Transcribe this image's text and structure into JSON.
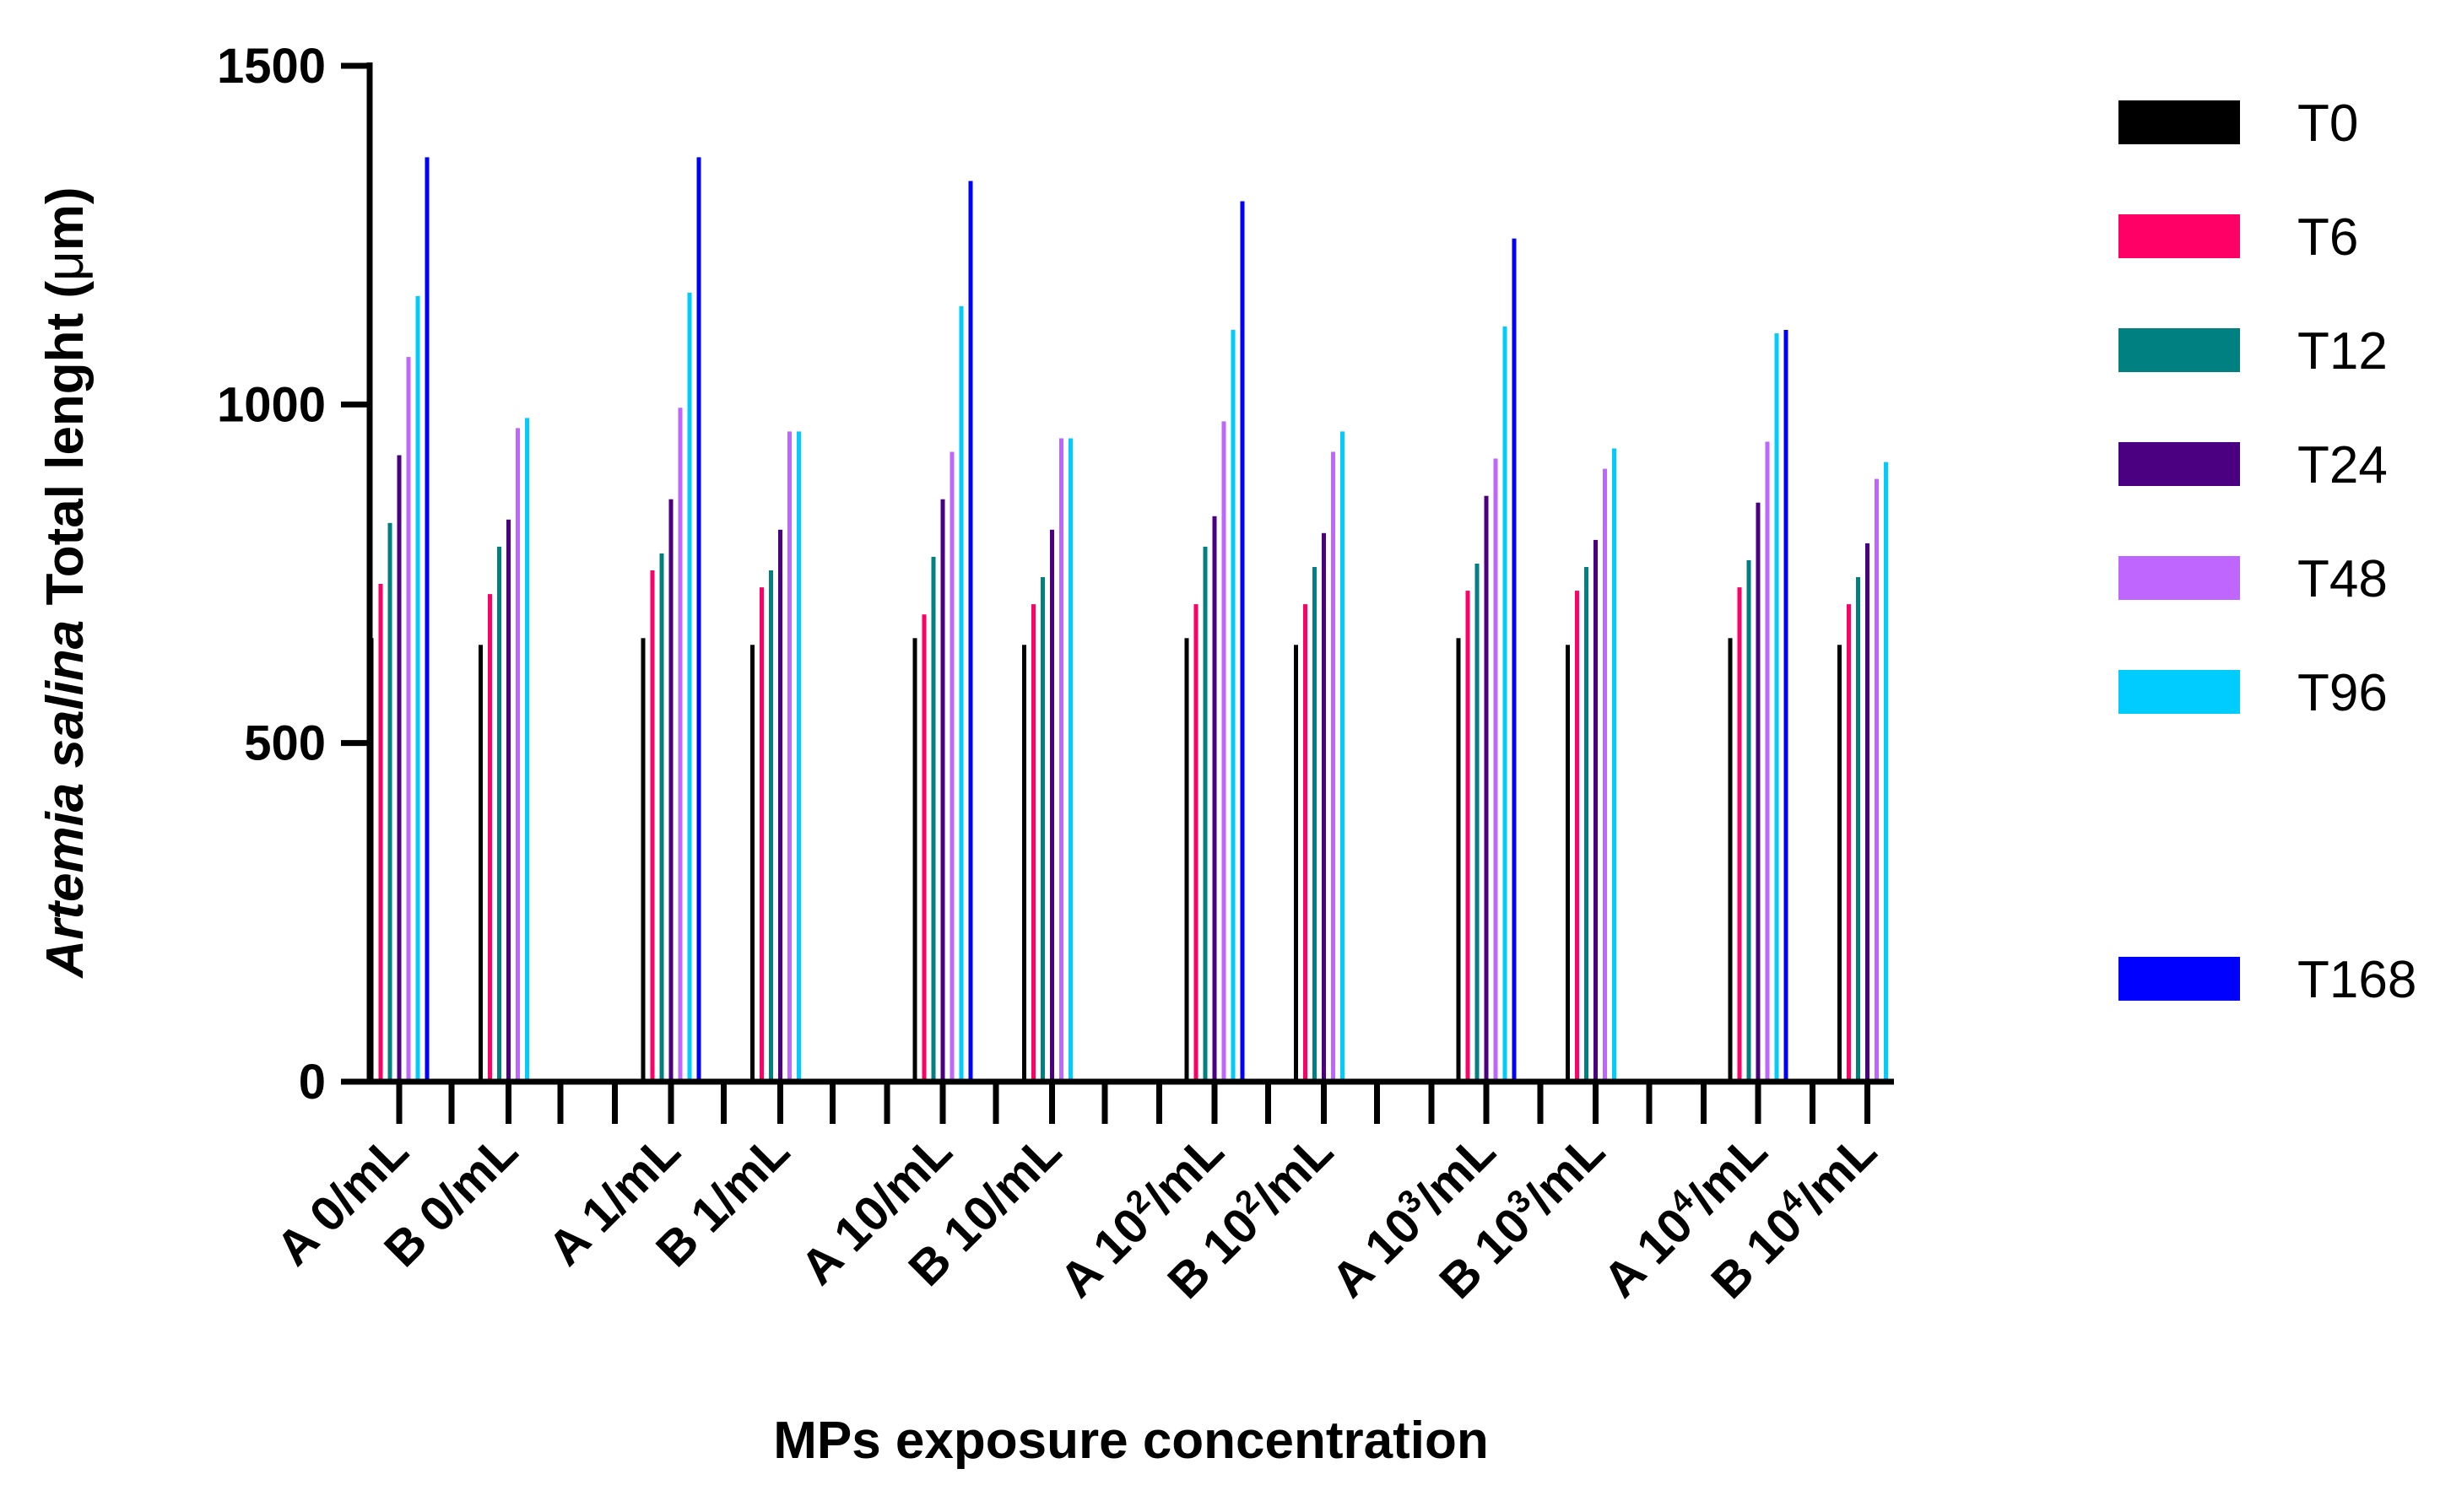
{
  "chart_data": {
    "type": "bar",
    "xlabel": "MPs exposure concentration",
    "ylabel": {
      "italic": "Artemia salina",
      "rest": " Total lenght (",
      "mu": "μ",
      "unit_end": "m)"
    },
    "ylim": [
      0,
      1500
    ],
    "yticks": [
      "0",
      "500",
      "1000",
      "1500"
    ],
    "grid": false,
    "legend_position": "right",
    "categories": [
      {
        "base": "A 0/mL",
        "sup": "",
        "tail": ""
      },
      {
        "base": "B 0/mL",
        "sup": "",
        "tail": ""
      },
      {
        "base": "A 1/mL",
        "sup": "",
        "tail": ""
      },
      {
        "base": "B 1/mL",
        "sup": "",
        "tail": ""
      },
      {
        "base": "A 10/mL",
        "sup": "",
        "tail": ""
      },
      {
        "base": "B 10/mL",
        "sup": "",
        "tail": ""
      },
      {
        "base": "A 10",
        "sup": "2",
        "tail": "/mL"
      },
      {
        "base": "B 10",
        "sup": "2",
        "tail": "/mL"
      },
      {
        "base": "A 10",
        "sup": "3",
        "tail": "/mL"
      },
      {
        "base": "B 10",
        "sup": "3",
        "tail": "/mL"
      },
      {
        "base": "A 10",
        "sup": "4",
        "tail": "/mL"
      },
      {
        "base": "B 10",
        "sup": "4",
        "tail": "/mL"
      }
    ],
    "series": [
      {
        "name": "T0",
        "color": "#000000",
        "values": [
          655,
          645,
          655,
          645,
          655,
          645,
          655,
          645,
          655,
          645,
          655,
          645
        ]
      },
      {
        "name": "T6",
        "color": "#ff0066",
        "values": [
          735,
          720,
          755,
          730,
          690,
          705,
          705,
          705,
          725,
          725,
          730,
          705
        ]
      },
      {
        "name": "T12",
        "color": "#008080",
        "values": [
          825,
          790,
          780,
          755,
          775,
          745,
          790,
          760,
          765,
          760,
          770,
          745
        ]
      },
      {
        "name": "T24",
        "color": "#4b0082",
        "values": [
          925,
          830,
          860,
          815,
          860,
          815,
          835,
          810,
          865,
          800,
          855,
          795
        ]
      },
      {
        "name": "T48",
        "color": "#bf66ff",
        "values": [
          1070,
          965,
          995,
          960,
          930,
          950,
          975,
          930,
          920,
          905,
          945,
          890
        ]
      },
      {
        "name": "T96",
        "color": "#00ccff",
        "values": [
          1160,
          980,
          1165,
          960,
          1145,
          950,
          1110,
          960,
          1115,
          935,
          1105,
          915
        ]
      },
      {
        "name": "T168",
        "color": "#0000ff",
        "values": [
          1365,
          null,
          1365,
          null,
          1330,
          null,
          1300,
          null,
          1245,
          null,
          1110,
          null
        ]
      }
    ]
  }
}
